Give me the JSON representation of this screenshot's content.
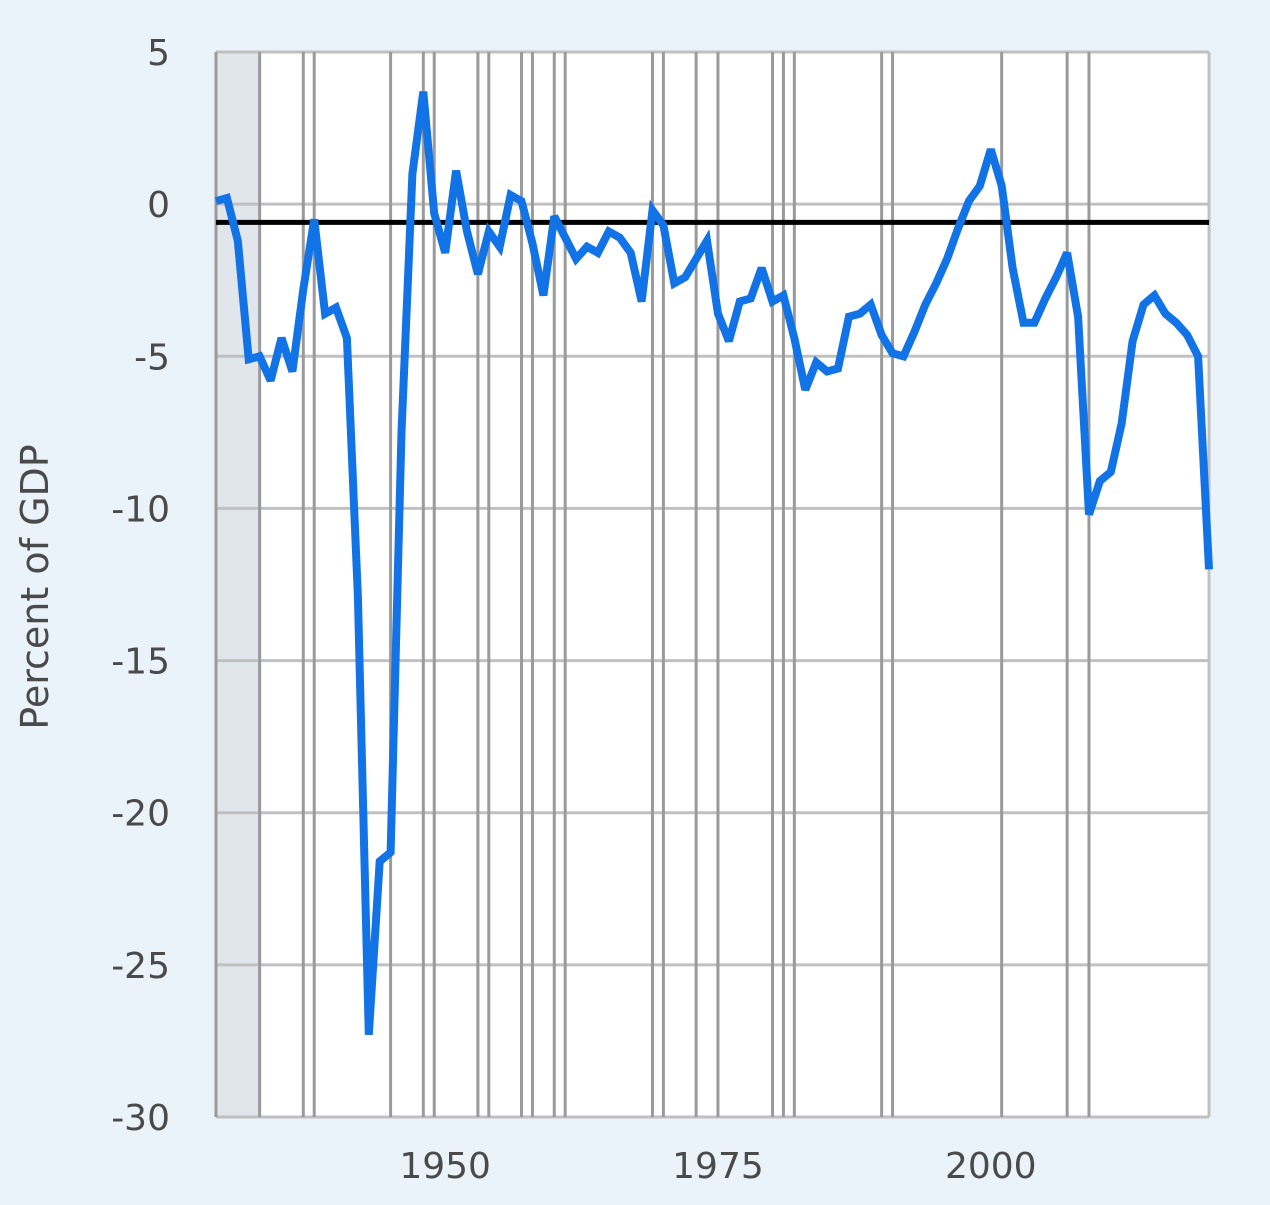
{
  "chart_data": {
    "type": "line",
    "title": "",
    "xlabel": "",
    "ylabel": "Percent of GDP",
    "xlim": [
      1929,
      2020
    ],
    "ylim": [
      -30,
      5
    ],
    "grid": true,
    "x_ticks": [
      1950,
      1975,
      2000
    ],
    "y_ticks": [
      5,
      0,
      -5,
      -10,
      -15,
      -20,
      -25,
      -30
    ],
    "x_tick_labels": [
      "1950",
      "1975",
      "2000"
    ],
    "y_tick_labels": [
      "5",
      "0",
      "-5",
      "-10",
      "-15",
      "-20",
      "-25",
      "-30"
    ],
    "reference_line": -0.6,
    "shaded_period": [
      1929,
      1933
    ],
    "recession_starts": [
      1929,
      1933,
      1937,
      1938,
      1945,
      1948,
      1949,
      1953,
      1954,
      1957,
      1958,
      1960,
      1961,
      1969,
      1970,
      1973,
      1975,
      1980,
      1981,
      1982,
      1990,
      1991,
      2001,
      2007,
      2009
    ],
    "colors": {
      "line": "#1273e6",
      "reference_line": "#000000",
      "grid": "#c0c0c0",
      "recession_line": "#9a9a9a",
      "shade": "#e1e6ec",
      "background": "#eaf2fa",
      "plot_background": "#ffffff"
    },
    "series": [
      {
        "x": [
          1929,
          1930,
          1931,
          1932,
          1933,
          1934,
          1935,
          1936,
          1937,
          1938,
          1939,
          1940,
          1941,
          1942,
          1943,
          1944,
          1945,
          1946,
          1947,
          1948,
          1949,
          1950,
          1951,
          1952,
          1953,
          1954,
          1955,
          1956,
          1957,
          1958,
          1959,
          1960,
          1961,
          1962,
          1963,
          1964,
          1965,
          1966,
          1967,
          1968,
          1969,
          1970,
          1971,
          1972,
          1973,
          1974,
          1975,
          1976,
          1977,
          1978,
          1979,
          1980,
          1981,
          1982,
          1983,
          1984,
          1985,
          1986,
          1987,
          1988,
          1989,
          1990,
          1991,
          1992,
          1993,
          1994,
          1995,
          1996,
          1997,
          1998,
          1999,
          2000,
          2001,
          2002,
          2003,
          2004,
          2005,
          2006,
          2007,
          2008,
          2009,
          2010,
          2011,
          2012,
          2013,
          2014,
          2015,
          2016,
          2017,
          2018,
          2019,
          2020
        ],
        "values": [
          0.1,
          0.2,
          -1.2,
          -5.1,
          -5.0,
          -5.8,
          -4.4,
          -5.5,
          -2.8,
          -0.5,
          -3.6,
          -3.4,
          -4.4,
          -12.9,
          -27.3,
          -21.6,
          -21.3,
          -7.5,
          1.0,
          3.7,
          -0.3,
          -1.6,
          1.1,
          -0.9,
          -2.3,
          -0.9,
          -1.4,
          0.3,
          0.1,
          -1.3,
          -3.0,
          -0.4,
          -1.1,
          -1.8,
          -1.4,
          -1.6,
          -0.9,
          -1.1,
          -1.6,
          -3.2,
          -0.2,
          -0.7,
          -2.6,
          -2.4,
          -1.8,
          -1.2,
          -3.6,
          -4.5,
          -3.2,
          -3.1,
          -2.1,
          -3.2,
          -3.0,
          -4.4,
          -6.1,
          -5.2,
          -5.5,
          -5.4,
          -3.7,
          -3.6,
          -3.3,
          -4.3,
          -4.9,
          -5.0,
          -4.2,
          -3.3,
          -2.6,
          -1.8,
          -0.8,
          0.1,
          0.6,
          1.8,
          0.6,
          -2.1,
          -3.9,
          -3.9,
          -3.1,
          -2.4,
          -1.6,
          -3.7,
          -10.2,
          -9.1,
          -8.8,
          -7.2,
          -4.5,
          -3.3,
          -3.0,
          -3.6,
          -3.9,
          -4.3,
          -5.0,
          -12.0
        ]
      }
    ]
  }
}
